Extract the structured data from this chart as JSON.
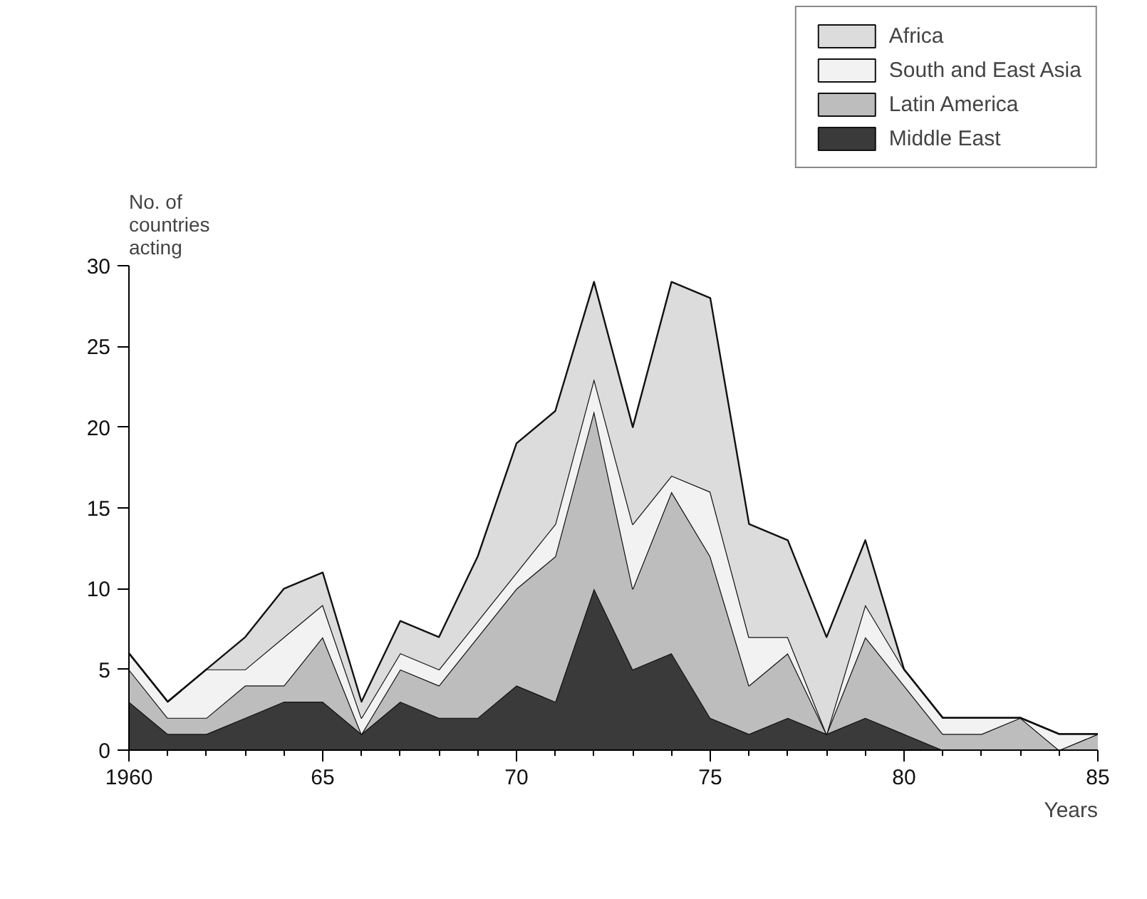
{
  "chart_data": {
    "type": "area",
    "stacked": true,
    "x": [
      1960,
      1961,
      1962,
      1963,
      1964,
      1965,
      1966,
      1967,
      1968,
      1969,
      1970,
      1971,
      1972,
      1973,
      1974,
      1975,
      1976,
      1977,
      1978,
      1979,
      1980,
      1981,
      1982,
      1983,
      1984,
      1985
    ],
    "series": [
      {
        "name": "Middle East",
        "color": "#3a3a3a",
        "values": [
          3,
          1,
          1,
          2,
          3,
          3,
          1,
          3,
          2,
          2,
          4,
          3,
          10,
          5,
          6,
          2,
          1,
          2,
          1,
          2,
          1,
          0,
          0,
          0,
          0,
          0
        ]
      },
      {
        "name": "Latin America",
        "color": "#bdbdbd",
        "values": [
          2,
          1,
          1,
          2,
          1,
          4,
          0,
          2,
          2,
          5,
          6,
          9,
          11,
          5,
          10,
          10,
          3,
          4,
          0,
          5,
          3,
          1,
          1,
          2,
          0,
          1
        ]
      },
      {
        "name": "South and East Asia",
        "color": "#f2f2f2",
        "values": [
          1,
          1,
          3,
          1,
          3,
          2,
          1,
          1,
          1,
          1,
          1,
          2,
          2,
          4,
          1,
          4,
          3,
          1,
          0,
          2,
          1,
          1,
          1,
          0,
          1,
          0
        ]
      },
      {
        "name": "Africa",
        "color": "#dcdcdc",
        "values": [
          0,
          0,
          0,
          2,
          3,
          2,
          1,
          2,
          2,
          4,
          8,
          7,
          6,
          6,
          12,
          12,
          7,
          6,
          6,
          4,
          0,
          0,
          0,
          0,
          0,
          0
        ]
      }
    ],
    "xlabel": "Years",
    "ylabel": "No. of countries acting",
    "xlim": [
      1960,
      1985
    ],
    "xticks": [
      1960,
      {
        "value": 1965,
        "label": "65"
      },
      {
        "value": 1970,
        "label": "70"
      },
      {
        "value": 1975,
        "label": "75"
      },
      {
        "value": 1980,
        "label": "80"
      },
      {
        "value": 1985,
        "label": "85"
      }
    ],
    "ylim": [
      0,
      30
    ],
    "yticks": [
      0,
      5,
      10,
      15,
      20,
      25,
      30
    ],
    "legend": "top right",
    "grid": false
  }
}
